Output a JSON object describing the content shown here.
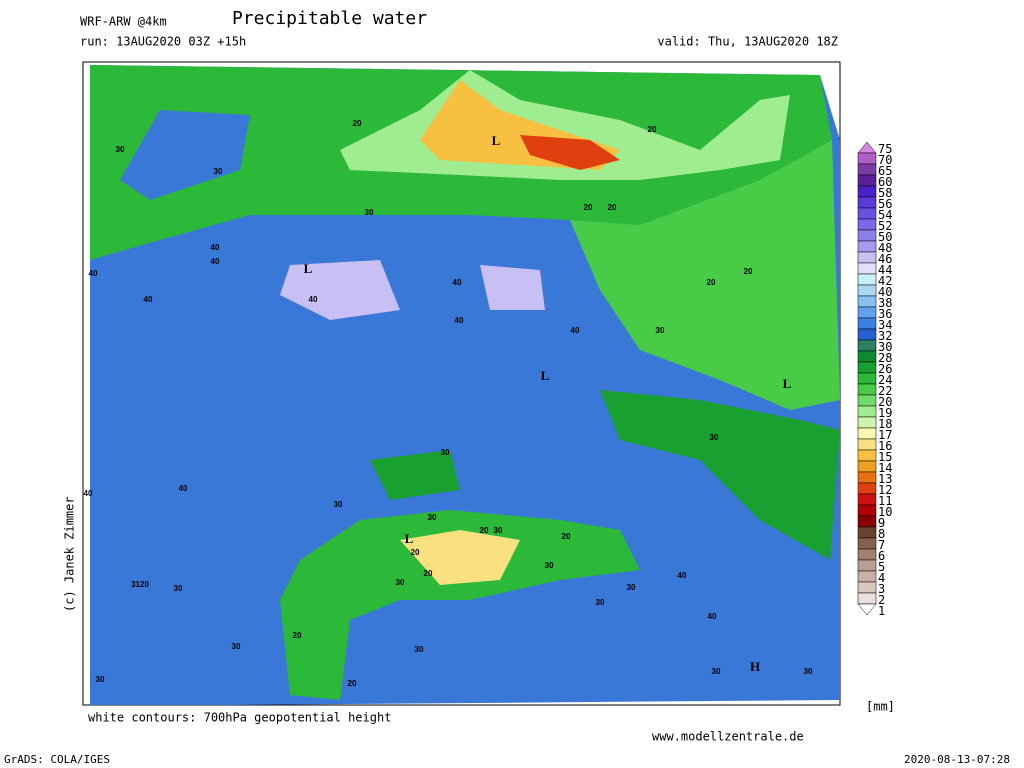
{
  "header": {
    "model": "WRF-ARW @4km",
    "title": "Precipitable water",
    "run": "run: 13AUG2020 03Z +15h",
    "valid": "valid: Thu, 13AUG2020 18Z"
  },
  "credit": "(c) Janek Zimmer",
  "footer": {
    "contours": "white contours: 700hPa geopotential height",
    "website": "www.modellzentrale.de",
    "software": "GrADS: COLA/IGES",
    "timestamp": "2020-08-13-07:28"
  },
  "colorbar": {
    "unit": "[mm]",
    "levels": [
      "75",
      "70",
      "65",
      "60",
      "58",
      "56",
      "54",
      "52",
      "50",
      "48",
      "46",
      "44",
      "42",
      "40",
      "38",
      "36",
      "34",
      "32",
      "30",
      "28",
      "26",
      "24",
      "22",
      "20",
      "19",
      "18",
      "17",
      "16",
      "15",
      "14",
      "13",
      "12",
      "11",
      "10",
      "9",
      "8",
      "7",
      "6",
      "5",
      "4",
      "3",
      "2",
      "1"
    ],
    "colors": [
      "#d58ae0",
      "#b45cc8",
      "#7c3aa8",
      "#5a1e96",
      "#4a1ec8",
      "#5a3ad8",
      "#6a50e0",
      "#7a68e8",
      "#8c80ec",
      "#a898f0",
      "#c8c0f4",
      "#e0e0fa",
      "#c8f0f8",
      "#a8d8f4",
      "#88c0f0",
      "#60a0ec",
      "#3c80e4",
      "#2860d0",
      "#2a8060",
      "#0c8a30",
      "#18a030",
      "#2cb838",
      "#48cc48",
      "#70dc68",
      "#a0ec90",
      "#d0f4b0",
      "#f8f8b0",
      "#f8e080",
      "#f8c040",
      "#f0a020",
      "#e87010",
      "#e04010",
      "#d01010",
      "#b00000",
      "#880000",
      "#6a4030",
      "#886050",
      "#a08070",
      "#b8a090",
      "#c8b0a8",
      "#d8c8c0",
      "#ece0dc",
      "#ffffff"
    ]
  },
  "map_labels": [
    "30",
    "30",
    "20",
    "L",
    "20",
    "20",
    "20",
    "30",
    "40",
    "40",
    "L",
    "40",
    "40",
    "40",
    "40",
    "40",
    "40",
    "30",
    "L",
    "20",
    "20",
    "L",
    "30",
    "30",
    "40",
    "40",
    "30",
    "30",
    "L",
    "20",
    "30",
    "20",
    "30",
    "20",
    "30",
    "20",
    "3120",
    "30",
    "30",
    "30",
    "40",
    "40",
    "20",
    "30",
    "30",
    "30",
    "H",
    "30",
    "30",
    "20"
  ]
}
